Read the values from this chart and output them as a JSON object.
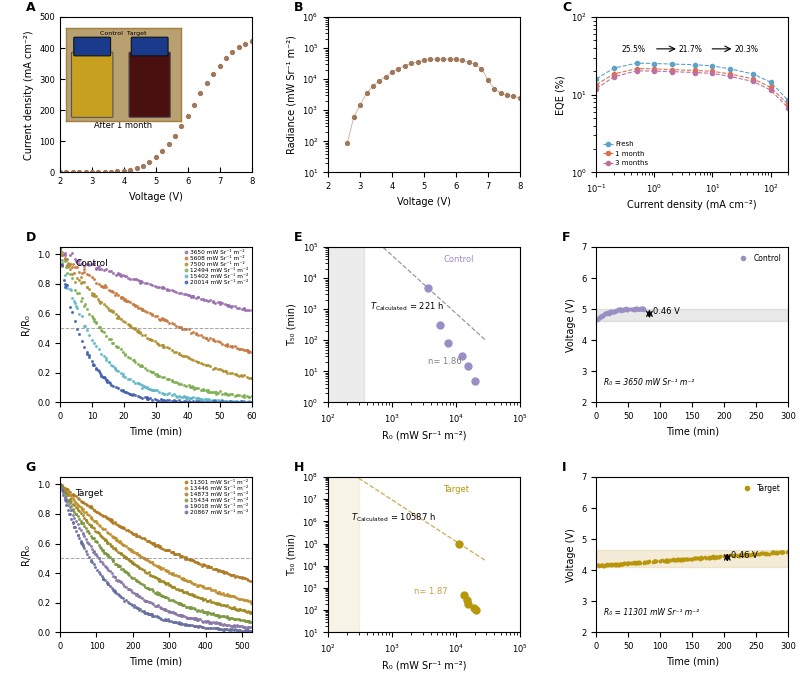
{
  "colors": {
    "brown": "#A0785A",
    "purple_ctrl": "#9B8EC4",
    "gold_tgt": "#B8960A",
    "fresh": "#5BA3C9",
    "one_month": "#E07050",
    "three_months": "#C070A0"
  },
  "panelA": {
    "voltage": [
      2.0,
      2.2,
      2.4,
      2.6,
      2.8,
      3.0,
      3.2,
      3.4,
      3.6,
      3.8,
      4.0,
      4.2,
      4.4,
      4.6,
      4.8,
      5.0,
      5.2,
      5.4,
      5.6,
      5.8,
      6.0,
      6.2,
      6.4,
      6.6,
      6.8,
      7.0,
      7.2,
      7.4,
      7.6,
      7.8,
      8.0
    ],
    "current": [
      0.0,
      0.0,
      0.0,
      0.1,
      0.3,
      0.6,
      1.0,
      1.5,
      2.5,
      4.0,
      6.0,
      9.0,
      14.0,
      22.0,
      33.0,
      48.0,
      68.0,
      90.0,
      118.0,
      150.0,
      183.0,
      218.0,
      255.0,
      287.0,
      315.0,
      343.0,
      368.0,
      388.0,
      402.0,
      413.0,
      422.0
    ],
    "xlabel": "Voltage (V)",
    "ylabel": "Current density (mA cm⁻²)",
    "xlim": [
      2,
      8
    ],
    "ylim": [
      0,
      500
    ]
  },
  "panelB": {
    "voltage": [
      2.6,
      2.8,
      3.0,
      3.2,
      3.4,
      3.6,
      3.8,
      4.0,
      4.2,
      4.4,
      4.6,
      4.8,
      5.0,
      5.2,
      5.4,
      5.6,
      5.8,
      6.0,
      6.2,
      6.4,
      6.6,
      6.8,
      7.0,
      7.2,
      7.4,
      7.6,
      7.8,
      8.0
    ],
    "radiance": [
      90,
      600,
      1500,
      3500,
      6000,
      9000,
      12000,
      17000,
      22000,
      27000,
      32000,
      36000,
      40000,
      43000,
      44000,
      44500,
      44000,
      43000,
      40000,
      36000,
      30000,
      22000,
      9500,
      5000,
      3500,
      3000,
      2800,
      2500
    ],
    "xlabel": "Voltage (V)",
    "ylabel": "Radiance (mW Sr⁻¹ m⁻²)",
    "xlim": [
      2,
      8
    ],
    "ylim_log": [
      10,
      1000000
    ]
  },
  "panelC": {
    "cd_fresh": [
      0.1,
      0.2,
      0.5,
      1.0,
      2.0,
      5.0,
      10.0,
      20.0,
      50.0,
      100.0,
      200.0
    ],
    "eqe_fresh": [
      16.0,
      22.0,
      25.5,
      25.2,
      24.8,
      24.3,
      23.5,
      21.5,
      18.5,
      14.5,
      8.5
    ],
    "cd_1m": [
      0.1,
      0.2,
      0.5,
      1.0,
      2.0,
      5.0,
      10.0,
      20.0,
      50.0,
      100.0,
      200.0
    ],
    "eqe_1m": [
      13.5,
      18.5,
      21.7,
      21.5,
      21.0,
      20.5,
      20.0,
      18.5,
      16.0,
      12.5,
      7.5
    ],
    "cd_3m": [
      0.1,
      0.2,
      0.5,
      1.0,
      2.0,
      5.0,
      10.0,
      20.0,
      50.0,
      100.0,
      200.0
    ],
    "eqe_3m": [
      12.0,
      17.0,
      20.3,
      20.1,
      19.8,
      19.3,
      18.8,
      17.2,
      14.8,
      11.5,
      6.8
    ],
    "xlabel": "Current density (mA cm⁻²)",
    "ylabel": "EQE (%)"
  },
  "panelD": {
    "ctrl_colors": [
      "#9B6DB0",
      "#C87840",
      "#B09030",
      "#7EB050",
      "#60B8C8",
      "#4060B0"
    ],
    "ctrl_rates": [
      0.008,
      0.018,
      0.03,
      0.055,
      0.085,
      0.13
    ],
    "legend_labels": [
      "3650 mW Sr⁻¹ m⁻²",
      "5608 mW Sr⁻¹ m⁻²",
      "7500 mW Sr⁻¹ m⁻²",
      "12494 mW Sr⁻¹ m⁻²",
      "15402 mW Sr⁻¹ m⁻²",
      "20014 mW Sr⁻¹ m⁻²"
    ],
    "xlabel": "Time (min)",
    "ylabel": "R/R₀",
    "xlim": [
      0,
      60
    ],
    "ylim": [
      0.0,
      1.05
    ]
  },
  "panelE": {
    "R0_ctrl": [
      3650,
      5608,
      7500,
      12494,
      15402,
      20014
    ],
    "T50_ctrl": [
      4800,
      300,
      80,
      30,
      15,
      5
    ],
    "n_ctrl": 1.86,
    "T_calc_ctrl": 221,
    "xlim_log": [
      100,
      100000
    ],
    "ylim_log": [
      1,
      100000
    ],
    "xlabel": "R₀ (mW Sr⁻¹ m⁻²)",
    "ylabel": "T₅₀ (min)"
  },
  "panelF": {
    "xlabel": "Time (min)",
    "ylabel": "Voltage (V)",
    "xlim": [
      0,
      300
    ],
    "ylim": [
      2,
      7
    ],
    "v_start": 4.65,
    "v_peak": 5.02,
    "v_end": 5.01,
    "t_rise": 70,
    "band_lo": 4.62,
    "band_hi": 5.02,
    "arrow_t": 83,
    "arrow_lo": 4.62,
    "arrow_hi": 5.08,
    "R0_label": "R₀ = 3650 mW Sr⁻¹ m⁻²",
    "voltage_drop": "0.46 V"
  },
  "panelG": {
    "tgt_colors": [
      "#B07820",
      "#C09030",
      "#A08820",
      "#7A9840",
      "#8878A8",
      "#6870A0"
    ],
    "tgt_rates": [
      0.002,
      0.003,
      0.0038,
      0.005,
      0.0065,
      0.0085
    ],
    "legend_labels": [
      "11301 mW Sr⁻¹ m⁻²",
      "13446 mW Sr⁻¹ m⁻²",
      "14873 mW Sr⁻¹ m⁻²",
      "15434 mW Sr⁻¹ m⁻²",
      "19018 mW Sr⁻¹ m⁻²",
      "20867 mW Sr⁻¹ m⁻²"
    ],
    "xlabel": "Time (min)",
    "ylabel": "R/R₀",
    "xlim": [
      0,
      525
    ],
    "ylim": [
      0.0,
      1.05
    ]
  },
  "panelH": {
    "R0_tgt": [
      11301,
      13446,
      14873,
      15434,
      19018,
      20867
    ],
    "T50_tgt": [
      100000,
      500,
      280,
      200,
      130,
      100
    ],
    "n_tgt": 1.87,
    "T_calc_tgt": 10587,
    "xlim_log": [
      100,
      100000
    ],
    "ylim_log": [
      10,
      100000000
    ],
    "xlabel": "R₀ (mW Sr⁻¹ m⁻²)",
    "ylabel": "T₅₀ (min)"
  },
  "panelI": {
    "xlabel": "Time (min)",
    "ylabel": "Voltage (V)",
    "xlim": [
      0,
      300
    ],
    "ylim": [
      2,
      7
    ],
    "v_start": 4.15,
    "v_peak": 4.6,
    "v_end": 4.62,
    "t_rise": 300,
    "band_lo": 4.1,
    "band_hi": 4.65,
    "arrow_t": 205,
    "arrow_lo": 4.18,
    "arrow_hi": 4.64,
    "R0_label": "R₀ = 11301 mW Sr⁻¹ m⁻²",
    "voltage_drop": "0.46 V"
  }
}
